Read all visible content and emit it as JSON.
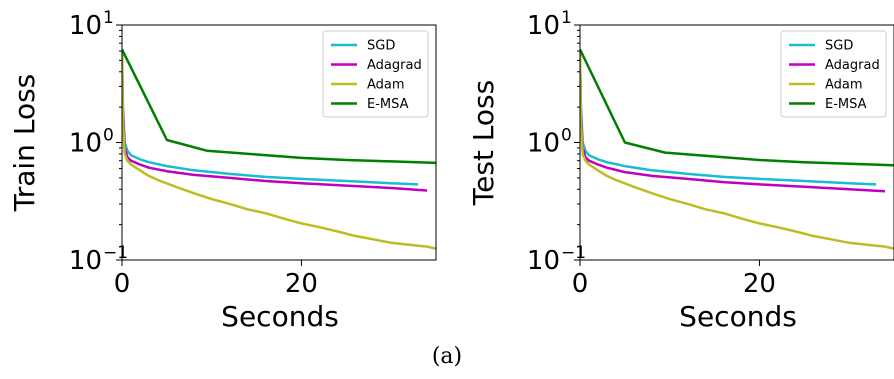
{
  "caption": "(a)",
  "chart_data": [
    {
      "type": "line",
      "ylabel": "Train Loss",
      "xlabel": "Seconds",
      "xlim": [
        0,
        35
      ],
      "ylim": [
        0.1,
        10
      ],
      "yscale": "log",
      "x_ticks": [
        {
          "v": 0,
          "label": "0"
        },
        {
          "v": 20,
          "label": "20"
        }
      ],
      "y_ticks": [
        {
          "v": 0.1,
          "base": "10",
          "exp": "−1"
        },
        {
          "v": 1,
          "base": "10",
          "exp": "0"
        },
        {
          "v": 10,
          "base": "10",
          "exp": "1"
        }
      ],
      "legend": "top-right",
      "series": [
        {
          "name": "SGD",
          "color": "#17becf",
          "x": [
            0,
            0.1,
            0.3,
            0.6,
            1,
            2,
            3,
            5,
            8,
            12,
            16,
            20,
            25,
            30,
            33
          ],
          "y": [
            6.0,
            2.0,
            1.0,
            0.85,
            0.78,
            0.72,
            0.68,
            0.63,
            0.58,
            0.54,
            0.51,
            0.49,
            0.47,
            0.45,
            0.44
          ]
        },
        {
          "name": "Adagrad",
          "color": "#bf00bf",
          "x": [
            0,
            0.1,
            0.3,
            0.6,
            1,
            2,
            3,
            5,
            8,
            12,
            16,
            20,
            25,
            30,
            34
          ],
          "y": [
            5.5,
            1.8,
            0.9,
            0.75,
            0.7,
            0.65,
            0.61,
            0.57,
            0.53,
            0.5,
            0.47,
            0.45,
            0.43,
            0.41,
            0.39
          ]
        },
        {
          "name": "Adam",
          "color": "#bcbd22",
          "x": [
            0,
            0.1,
            0.3,
            0.6,
            1,
            2,
            3,
            4,
            6,
            8,
            10,
            12,
            14,
            16,
            18,
            20,
            22,
            24,
            26,
            28,
            30,
            32,
            34,
            35
          ],
          "y": [
            6.0,
            1.5,
            0.8,
            0.7,
            0.65,
            0.58,
            0.52,
            0.48,
            0.42,
            0.37,
            0.33,
            0.3,
            0.27,
            0.25,
            0.225,
            0.205,
            0.19,
            0.175,
            0.16,
            0.15,
            0.14,
            0.135,
            0.13,
            0.125
          ]
        },
        {
          "name": "E-MSA",
          "color": "#008000",
          "x": [
            0,
            5,
            9.5,
            15,
            20,
            25,
            30,
            35
          ],
          "y": [
            6.2,
            1.05,
            0.85,
            0.79,
            0.74,
            0.71,
            0.69,
            0.67
          ]
        }
      ]
    },
    {
      "type": "line",
      "ylabel": "Test Loss",
      "xlabel": "Seconds",
      "xlim": [
        0,
        35
      ],
      "ylim": [
        0.1,
        10
      ],
      "yscale": "log",
      "x_ticks": [
        {
          "v": 0,
          "label": "0"
        },
        {
          "v": 20,
          "label": "20"
        }
      ],
      "y_ticks": [
        {
          "v": 0.1,
          "base": "10",
          "exp": "−1"
        },
        {
          "v": 1,
          "base": "10",
          "exp": "0"
        },
        {
          "v": 10,
          "base": "10",
          "exp": "1"
        }
      ],
      "legend": "top-right",
      "series": [
        {
          "name": "SGD",
          "color": "#17becf",
          "x": [
            0,
            0.1,
            0.3,
            0.6,
            1,
            2,
            3,
            5,
            8,
            12,
            16,
            20,
            25,
            30,
            33
          ],
          "y": [
            6.0,
            2.0,
            1.0,
            0.85,
            0.78,
            0.72,
            0.68,
            0.63,
            0.58,
            0.54,
            0.51,
            0.49,
            0.47,
            0.45,
            0.44
          ]
        },
        {
          "name": "Adagrad",
          "color": "#bf00bf",
          "x": [
            0,
            0.1,
            0.3,
            0.6,
            1,
            2,
            3,
            5,
            8,
            12,
            16,
            20,
            25,
            30,
            34
          ],
          "y": [
            5.5,
            1.8,
            0.9,
            0.75,
            0.7,
            0.65,
            0.61,
            0.56,
            0.52,
            0.49,
            0.46,
            0.44,
            0.42,
            0.4,
            0.385
          ]
        },
        {
          "name": "Adam",
          "color": "#bcbd22",
          "x": [
            0,
            0.1,
            0.3,
            0.6,
            1,
            2,
            3,
            4,
            6,
            8,
            10,
            12,
            14,
            16,
            18,
            20,
            22,
            24,
            26,
            28,
            30,
            32,
            34,
            35
          ],
          "y": [
            6.0,
            1.5,
            0.8,
            0.7,
            0.65,
            0.58,
            0.52,
            0.48,
            0.42,
            0.37,
            0.33,
            0.3,
            0.27,
            0.25,
            0.225,
            0.205,
            0.19,
            0.175,
            0.16,
            0.15,
            0.14,
            0.135,
            0.13,
            0.125
          ]
        },
        {
          "name": "E-MSA",
          "color": "#008000",
          "x": [
            0,
            5,
            9.5,
            15,
            20,
            25,
            30,
            35
          ],
          "y": [
            6.2,
            1.0,
            0.82,
            0.76,
            0.71,
            0.68,
            0.66,
            0.64
          ]
        }
      ]
    }
  ]
}
